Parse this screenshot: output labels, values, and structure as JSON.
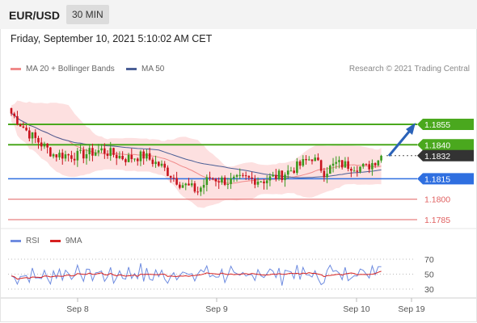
{
  "header": {
    "pair": "EUR/USD",
    "timeframe": "30 MIN"
  },
  "datetime": "Friday, September 10, 2021 5:10:02 AM CET",
  "legend": {
    "ma20_label": "MA 20 + Bollinger Bands",
    "ma50_label": "MA 50",
    "rsi_label": "RSI",
    "rsi_ma_label": "9MA",
    "copyright": "Research © 2021 Trading Central"
  },
  "colors": {
    "up": "#3a9a1e",
    "down": "#c8141e",
    "ma20": "#f08a8a",
    "ma50": "#4b5f96",
    "band": "#fde0e0",
    "resistance": "#4aa81e",
    "support": "#2f6fe0",
    "support_weak": "#e06060",
    "current": "#333333",
    "rsi": "#6f8ce0",
    "rsi_ma": "#d62020"
  },
  "chart_data": {
    "type": "candlestick",
    "ylim": [
      1.1775,
      1.187
    ],
    "current_price": 1.1832,
    "levels": [
      {
        "label": "1.1855",
        "value": 1.1855,
        "kind": "resistance"
      },
      {
        "label": "1.1840",
        "value": 1.184,
        "kind": "resistance"
      },
      {
        "label": "1.1832",
        "value": 1.1832,
        "kind": "current"
      },
      {
        "label": "1.1815",
        "value": 1.1815,
        "kind": "support"
      },
      {
        "label": "1.1800",
        "value": 1.18,
        "kind": "support_weak"
      },
      {
        "label": "1.1785",
        "value": 1.1785,
        "kind": "support_weak"
      }
    ],
    "x_ticks": [
      "Sep 8",
      "Sep 9",
      "Sep 10",
      "Sep 19"
    ],
    "rsi": {
      "ticks": [
        70,
        50,
        30
      ],
      "ylim": [
        20,
        80
      ]
    }
  }
}
